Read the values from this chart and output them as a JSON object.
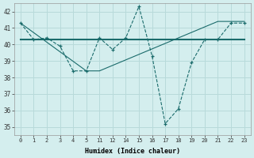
{
  "xtick_vals": [
    0,
    1,
    2,
    3,
    4,
    5,
    11,
    12,
    14,
    15,
    16,
    17,
    18,
    19,
    20,
    21,
    22,
    23
  ],
  "xtick_labels": [
    "0",
    "1",
    "2",
    "3",
    "4",
    "5",
    "11",
    "12",
    "14",
    "15",
    "16",
    "17",
    "18",
    "19",
    "20",
    "21",
    "22",
    "23"
  ],
  "series1_xi": [
    0,
    1,
    2,
    3,
    4,
    5,
    6,
    7,
    8,
    9,
    10,
    11,
    12,
    13,
    14,
    15,
    16,
    17
  ],
  "series1_y": [
    41.3,
    40.3,
    40.4,
    39.9,
    38.4,
    38.4,
    40.4,
    39.7,
    40.4,
    42.3,
    39.3,
    35.2,
    36.1,
    38.9,
    40.3,
    40.3,
    41.3,
    41.3
  ],
  "series2_xi": [
    0,
    17
  ],
  "series2_y": [
    40.3,
    40.3
  ],
  "series3_xi": [
    0,
    5,
    6,
    15,
    17
  ],
  "series3_y": [
    41.3,
    38.4,
    38.4,
    41.4,
    41.4
  ],
  "line_color": "#1a6b6b",
  "bg_color": "#d4eeee",
  "grid_color": "#b8dada",
  "xlabel": "Humidex (Indice chaleur)",
  "ylim": [
    34.5,
    42.5
  ],
  "yticks": [
    35,
    36,
    37,
    38,
    39,
    40,
    41,
    42
  ]
}
